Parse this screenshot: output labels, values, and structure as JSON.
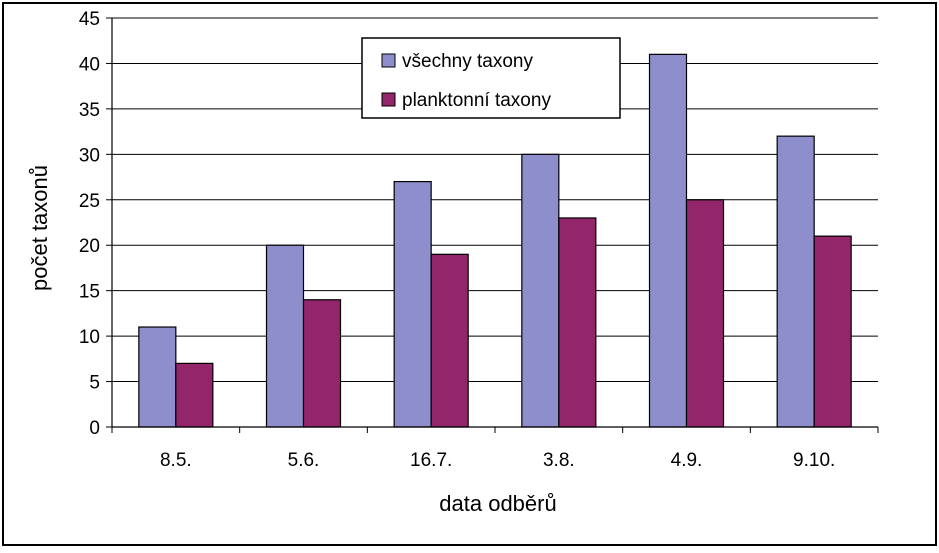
{
  "chart_data": {
    "type": "bar",
    "categories": [
      "8.5.",
      "5.6.",
      "16.7.",
      "3.8.",
      "4.9.",
      "9.10."
    ],
    "series": [
      {
        "name": "všechny taxony",
        "values": [
          11,
          20,
          27,
          30,
          41,
          32
        ],
        "color": "#8e8ecc"
      },
      {
        "name": "planktonní taxony",
        "values": [
          7,
          14,
          19,
          23,
          25,
          21
        ],
        "color": "#93266b"
      }
    ],
    "title": "",
    "xlabel": "data odběrů",
    "ylabel": "počet taxonů",
    "ylim": [
      0,
      45
    ],
    "yticks": [
      0,
      5,
      10,
      15,
      20,
      25,
      30,
      35,
      40,
      45
    ],
    "grid": true,
    "legend_position": "top-center"
  }
}
